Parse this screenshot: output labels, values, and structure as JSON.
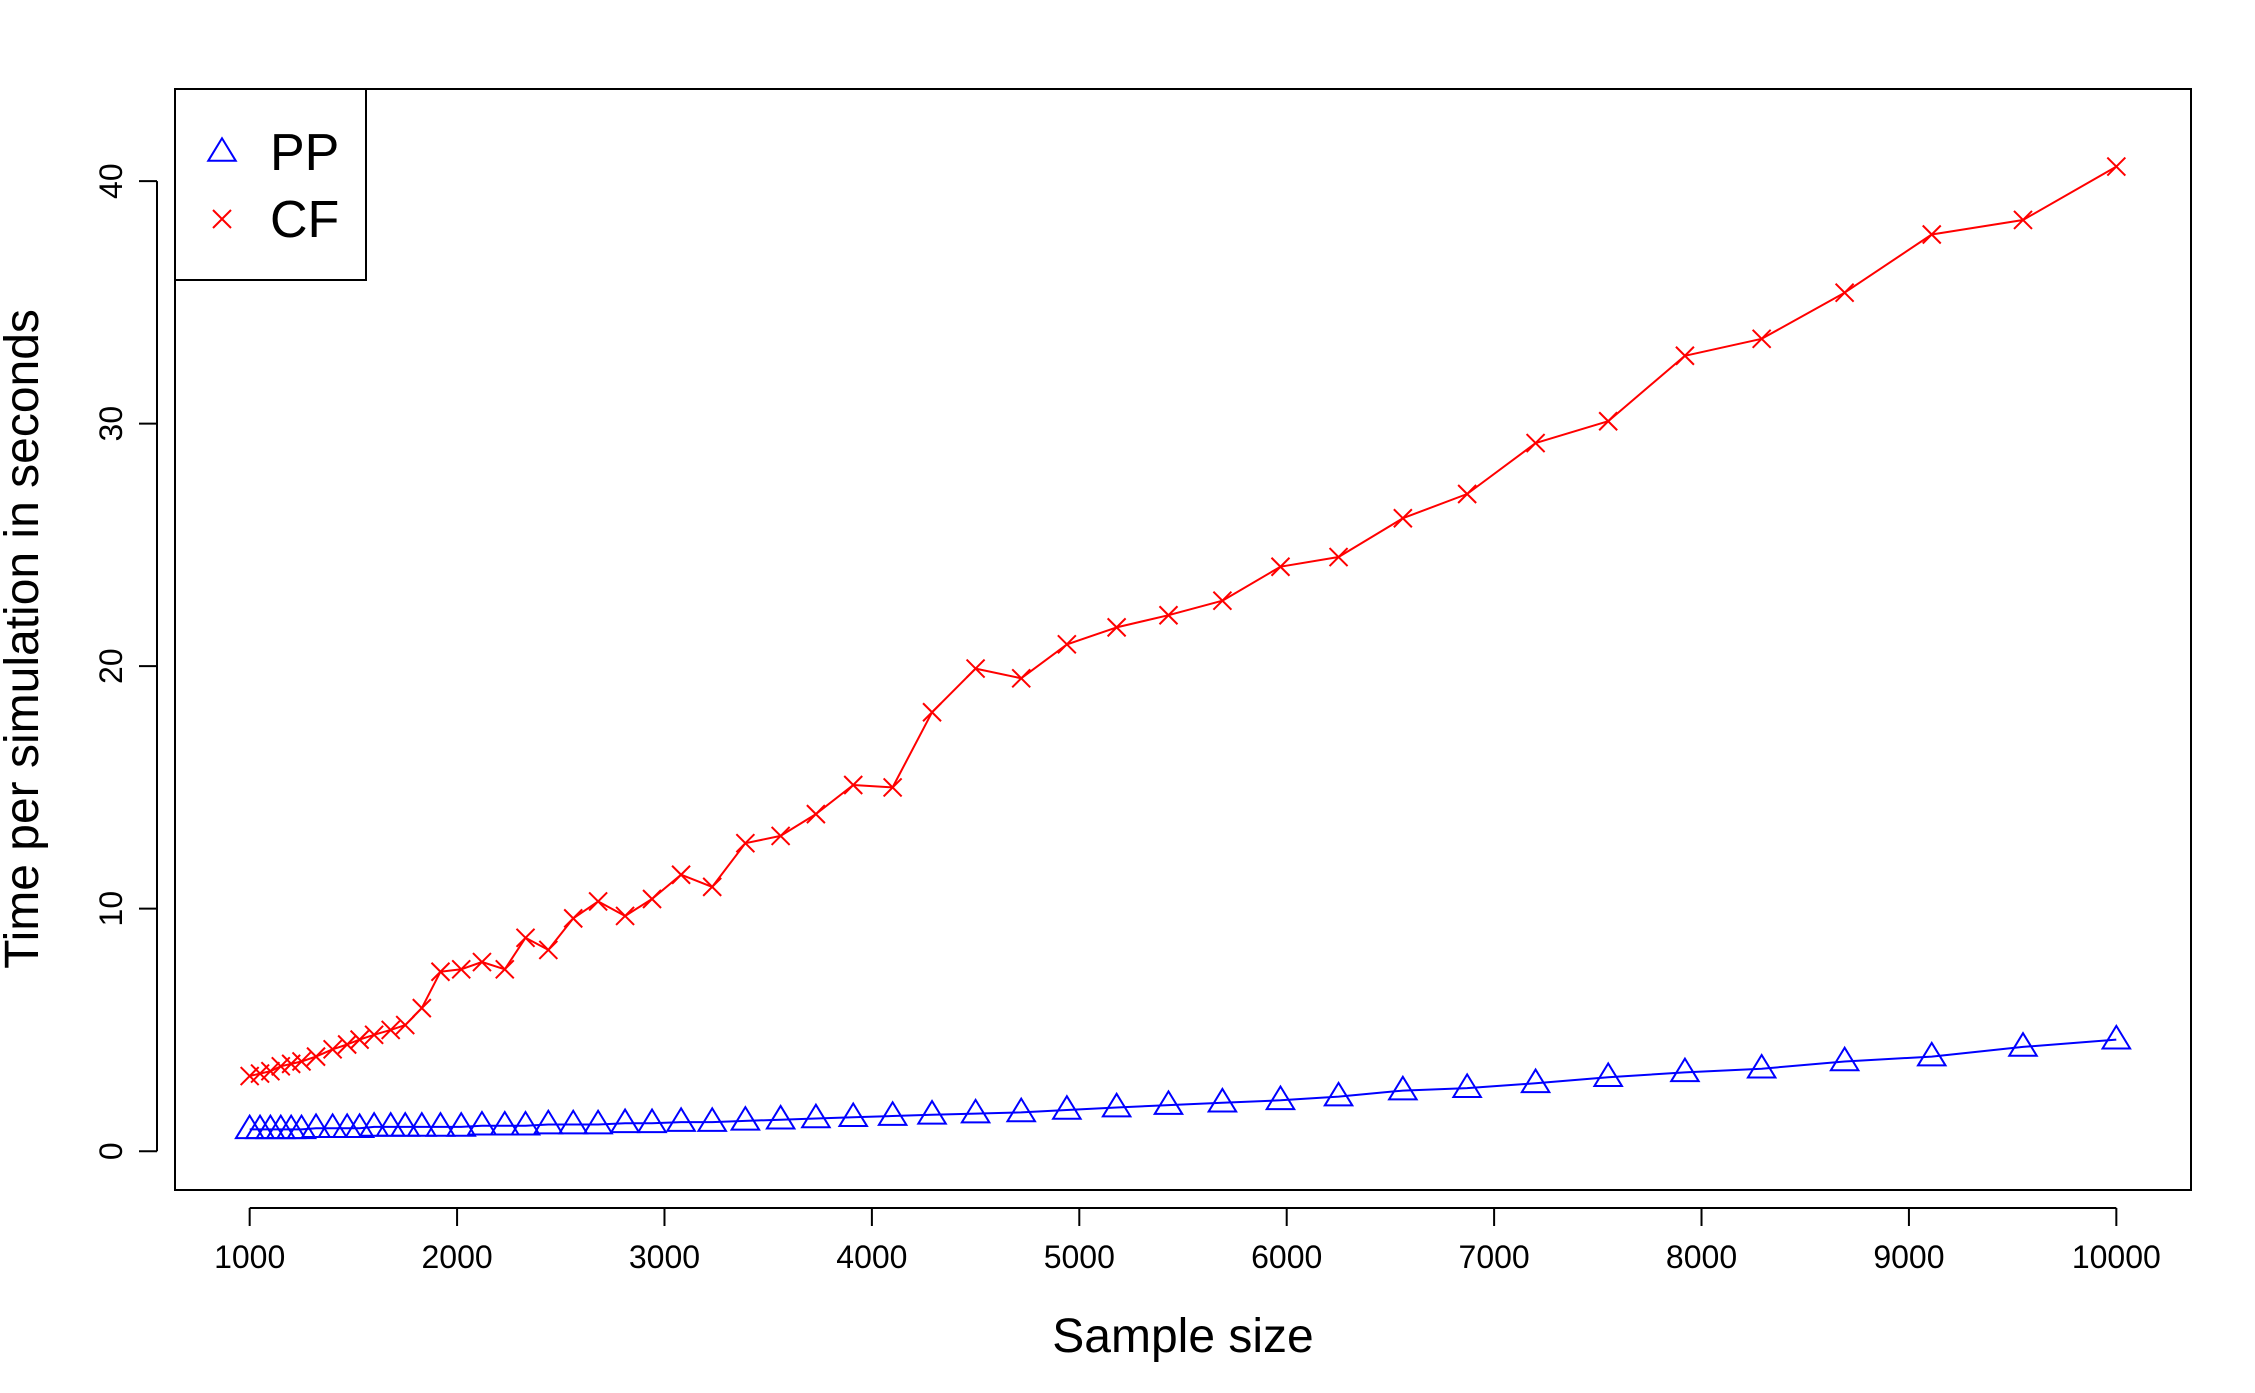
{
  "chart_data": {
    "type": "line",
    "title": "",
    "xlabel": "Sample size",
    "ylabel": "Time per simulation in seconds",
    "xlim": [
      640,
      10360
    ],
    "ylim": [
      -1.6,
      43.8
    ],
    "xticks": [
      1000,
      2000,
      3000,
      4000,
      5000,
      6000,
      7000,
      8000,
      9000,
      10000
    ],
    "yticks": [
      0,
      10,
      20,
      30,
      40
    ],
    "grid": false,
    "legend": {
      "position": "top-left",
      "entries": [
        "PP",
        "CF"
      ]
    },
    "series": [
      {
        "name": "PP",
        "color": "#0000ff",
        "marker": "triangle",
        "points": [
          [
            1000,
            0.9
          ],
          [
            1050,
            0.9
          ],
          [
            1100,
            0.9
          ],
          [
            1150,
            0.9
          ],
          [
            1200,
            0.9
          ],
          [
            1250,
            0.9
          ],
          [
            1320,
            0.95
          ],
          [
            1400,
            0.95
          ],
          [
            1470,
            0.95
          ],
          [
            1530,
            0.95
          ],
          [
            1600,
            1.0
          ],
          [
            1680,
            1.0
          ],
          [
            1750,
            1.0
          ],
          [
            1830,
            1.0
          ],
          [
            1920,
            1.0
          ],
          [
            2020,
            1.0
          ],
          [
            2120,
            1.05
          ],
          [
            2230,
            1.05
          ],
          [
            2330,
            1.05
          ],
          [
            2440,
            1.1
          ],
          [
            2560,
            1.1
          ],
          [
            2680,
            1.1
          ],
          [
            2810,
            1.15
          ],
          [
            2940,
            1.15
          ],
          [
            3080,
            1.2
          ],
          [
            3230,
            1.2
          ],
          [
            3390,
            1.25
          ],
          [
            3560,
            1.3
          ],
          [
            3730,
            1.35
          ],
          [
            3910,
            1.4
          ],
          [
            4100,
            1.45
          ],
          [
            4290,
            1.5
          ],
          [
            4500,
            1.55
          ],
          [
            4720,
            1.6
          ],
          [
            4940,
            1.7
          ],
          [
            5180,
            1.8
          ],
          [
            5430,
            1.9
          ],
          [
            5690,
            2.0
          ],
          [
            5970,
            2.1
          ],
          [
            6250,
            2.25
          ],
          [
            6560,
            2.5
          ],
          [
            6870,
            2.6
          ],
          [
            7200,
            2.8
          ],
          [
            7550,
            3.05
          ],
          [
            7920,
            3.25
          ],
          [
            8290,
            3.4
          ],
          [
            8690,
            3.7
          ],
          [
            9110,
            3.9
          ],
          [
            9550,
            4.3
          ],
          [
            10000,
            4.6
          ]
        ]
      },
      {
        "name": "CF",
        "color": "#ff0000",
        "marker": "cross",
        "points": [
          [
            1000,
            3.1
          ],
          [
            1050,
            3.2
          ],
          [
            1100,
            3.3
          ],
          [
            1150,
            3.5
          ],
          [
            1200,
            3.6
          ],
          [
            1250,
            3.7
          ],
          [
            1320,
            3.9
          ],
          [
            1400,
            4.2
          ],
          [
            1470,
            4.4
          ],
          [
            1530,
            4.6
          ],
          [
            1600,
            4.8
          ],
          [
            1680,
            5.0
          ],
          [
            1750,
            5.2
          ],
          [
            1830,
            5.9
          ],
          [
            1920,
            7.4
          ],
          [
            2020,
            7.5
          ],
          [
            2120,
            7.8
          ],
          [
            2230,
            7.5
          ],
          [
            2330,
            8.8
          ],
          [
            2440,
            8.3
          ],
          [
            2560,
            9.6
          ],
          [
            2680,
            10.3
          ],
          [
            2810,
            9.7
          ],
          [
            2940,
            10.4
          ],
          [
            3080,
            11.4
          ],
          [
            3230,
            10.9
          ],
          [
            3390,
            12.7
          ],
          [
            3560,
            13.0
          ],
          [
            3730,
            13.9
          ],
          [
            3910,
            15.1
          ],
          [
            4100,
            15.0
          ],
          [
            4290,
            18.1
          ],
          [
            4500,
            19.9
          ],
          [
            4720,
            19.5
          ],
          [
            4940,
            20.9
          ],
          [
            5180,
            21.6
          ],
          [
            5430,
            22.1
          ],
          [
            5690,
            22.7
          ],
          [
            5970,
            24.1
          ],
          [
            6250,
            24.5
          ],
          [
            6560,
            26.1
          ],
          [
            6870,
            27.1
          ],
          [
            7200,
            29.2
          ],
          [
            7550,
            30.1
          ],
          [
            7920,
            32.8
          ],
          [
            8290,
            33.5
          ],
          [
            8690,
            35.4
          ],
          [
            9110,
            37.8
          ],
          [
            9550,
            38.4
          ],
          [
            10000,
            40.6
          ]
        ]
      }
    ]
  }
}
